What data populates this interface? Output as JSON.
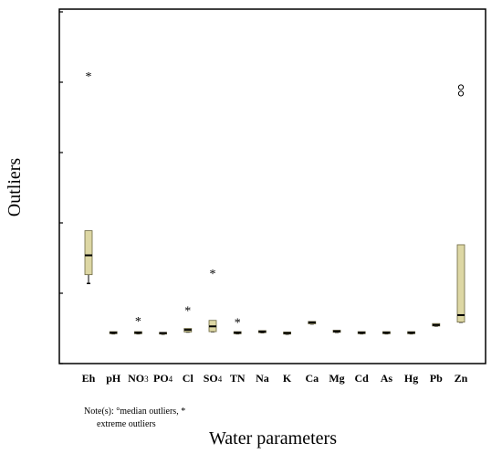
{
  "chart_data": {
    "type": "boxplot",
    "title": "",
    "xlabel": "Water parameters",
    "ylabel": "Outliers",
    "note_line1": "Note(s): °median outliers, *",
    "note_line2": "extreme outliers",
    "ylim": [
      0,
      100
    ],
    "categories": [
      {
        "label": "Eh",
        "sub": ""
      },
      {
        "label": "pH",
        "sub": ""
      },
      {
        "label": "NO",
        "sub": "3"
      },
      {
        "label": "PO",
        "sub": "4"
      },
      {
        "label": "Cl",
        "sub": ""
      },
      {
        "label": "SO",
        "sub": "4"
      },
      {
        "label": "TN",
        "sub": ""
      },
      {
        "label": "Na",
        "sub": ""
      },
      {
        "label": "K",
        "sub": ""
      },
      {
        "label": "Ca",
        "sub": ""
      },
      {
        "label": "Mg",
        "sub": ""
      },
      {
        "label": "Cd",
        "sub": ""
      },
      {
        "label": "As",
        "sub": ""
      },
      {
        "label": "Hg",
        "sub": ""
      },
      {
        "label": "Pb",
        "sub": ""
      },
      {
        "label": "Zn",
        "sub": ""
      }
    ],
    "boxes": [
      {
        "x": 0,
        "q1": 24.5,
        "median": 30.0,
        "q3": 37.0,
        "whisker_low": 22.0,
        "whisker_high": 37.0
      },
      {
        "x": 1,
        "q1": 7.7,
        "median": 8.0,
        "q3": 8.3,
        "whisker_low": 7.7,
        "whisker_high": 8.3
      },
      {
        "x": 2,
        "q1": 7.7,
        "median": 8.0,
        "q3": 8.3,
        "whisker_low": 7.7,
        "whisker_high": 8.3
      },
      {
        "x": 3,
        "q1": 7.6,
        "median": 7.9,
        "q3": 8.1,
        "whisker_low": 7.6,
        "whisker_high": 8.1
      },
      {
        "x": 4,
        "q1": 8.2,
        "median": 8.8,
        "q3": 9.2,
        "whisker_low": 8.2,
        "whisker_high": 9.2
      },
      {
        "x": 5,
        "q1": 8.3,
        "median": 9.8,
        "q3": 11.5,
        "whisker_low": 8.3,
        "whisker_high": 11.5
      },
      {
        "x": 6,
        "q1": 7.7,
        "median": 8.0,
        "q3": 8.3,
        "whisker_low": 7.7,
        "whisker_high": 8.3
      },
      {
        "x": 7,
        "q1": 8.0,
        "median": 8.3,
        "q3": 8.6,
        "whisker_low": 8.0,
        "whisker_high": 8.6
      },
      {
        "x": 8,
        "q1": 7.6,
        "median": 7.9,
        "q3": 8.2,
        "whisker_low": 7.6,
        "whisker_high": 8.2
      },
      {
        "x": 9,
        "q1": 10.5,
        "median": 10.9,
        "q3": 11.2,
        "whisker_low": 10.5,
        "whisker_high": 11.2
      },
      {
        "x": 10,
        "q1": 8.1,
        "median": 8.4,
        "q3": 8.7,
        "whisker_low": 8.1,
        "whisker_high": 8.7
      },
      {
        "x": 11,
        "q1": 7.7,
        "median": 8.0,
        "q3": 8.3,
        "whisker_low": 7.7,
        "whisker_high": 8.3
      },
      {
        "x": 12,
        "q1": 7.7,
        "median": 8.0,
        "q3": 8.3,
        "whisker_low": 7.7,
        "whisker_high": 8.3
      },
      {
        "x": 13,
        "q1": 7.7,
        "median": 8.0,
        "q3": 8.3,
        "whisker_low": 7.7,
        "whisker_high": 8.3
      },
      {
        "x": 14,
        "q1": 9.9,
        "median": 10.2,
        "q3": 10.6,
        "whisker_low": 9.9,
        "whisker_high": 10.6
      },
      {
        "x": 15,
        "q1": 11.0,
        "median": 13.0,
        "q3": 33.0,
        "whisker_low": 11.0,
        "whisker_high": 33.0
      }
    ],
    "extreme_outliers": [
      {
        "x": 0,
        "y": 81.5
      },
      {
        "x": 2,
        "y": 12.0
      },
      {
        "x": 4,
        "y": 15.0
      },
      {
        "x": 5,
        "y": 25.5
      },
      {
        "x": 6,
        "y": 11.5
      }
    ],
    "median_outliers": [
      {
        "x": 15,
        "y": 76.0
      },
      {
        "x": 15,
        "y": 77.8
      }
    ],
    "colors": {
      "box_fill": "#ddd7a4",
      "box_stroke": "#6b6640",
      "median": "#000000",
      "axis": "#000000"
    }
  }
}
